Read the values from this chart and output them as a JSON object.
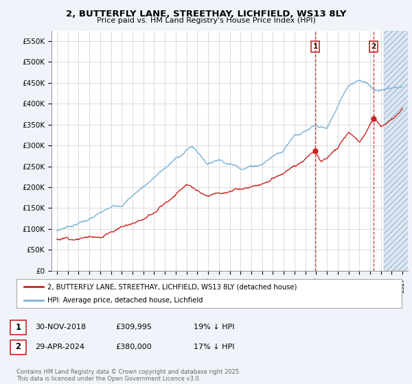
{
  "title": "2, BUTTERFLY LANE, STREETHAY, LICHFIELD, WS13 8LY",
  "subtitle": "Price paid vs. HM Land Registry's House Price Index (HPI)",
  "ylim": [
    0,
    575000
  ],
  "xlim_start": 1994.5,
  "xlim_end": 2027.5,
  "hpi_color": "#7ab3d9",
  "price_color": "#cc2222",
  "marker1_date": 2018.92,
  "marker1_price": 309995,
  "marker2_date": 2024.33,
  "marker2_price": 380000,
  "legend_label1": "2, BUTTERFLY LANE, STREETHAY, LICHFIELD, WS13 8LY (detached house)",
  "legend_label2": "HPI: Average price, detached house, Lichfield",
  "table_row1": [
    "1",
    "30-NOV-2018",
    "£309,995",
    "19% ↓ HPI"
  ],
  "table_row2": [
    "2",
    "29-APR-2024",
    "£380,000",
    "17% ↓ HPI"
  ],
  "footer": "Contains HM Land Registry data © Crown copyright and database right 2025.\nThis data is licensed under the Open Government Licence v3.0.",
  "background_color": "#f0f4fa",
  "plot_bg_color": "#ffffff",
  "grid_color": "#cccccc",
  "hatch_start": 2025.25
}
